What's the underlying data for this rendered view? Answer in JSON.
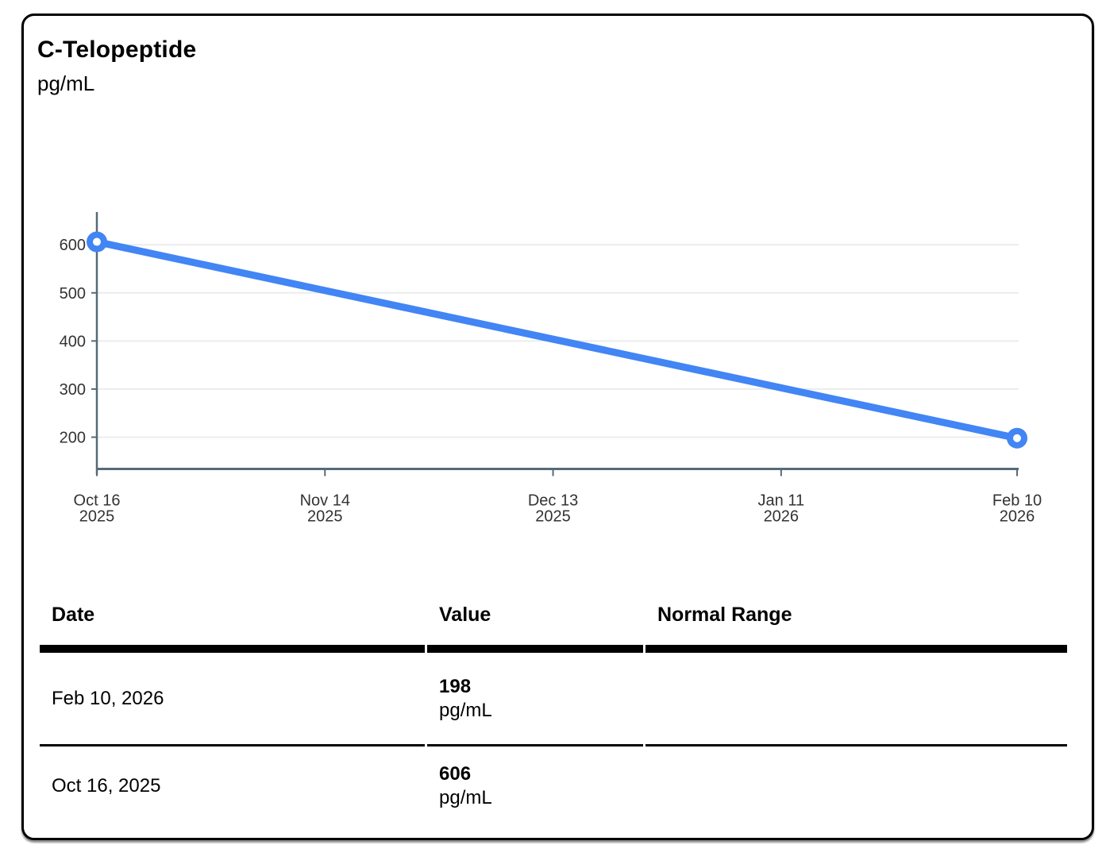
{
  "card": {
    "title": "C-Telopeptide",
    "unit": "pg/mL"
  },
  "chart_data": {
    "type": "line",
    "title": "C-Telopeptide",
    "ylabel": "pg/mL",
    "xlabel": "",
    "grid": true,
    "legend": "none",
    "y_ticks": [
      200,
      300,
      400,
      500,
      600
    ],
    "ylim": [
      134,
      668
    ],
    "x_ticks": [
      {
        "labels": [
          "Oct 16",
          "2025"
        ],
        "day": 0
      },
      {
        "labels": [
          "Nov 14",
          "2025"
        ],
        "day": 29
      },
      {
        "labels": [
          "Dec 13",
          "2025"
        ],
        "day": 58
      },
      {
        "labels": [
          "Jan 11",
          "2026"
        ],
        "day": 87
      },
      {
        "labels": [
          "Feb 10",
          "2026"
        ],
        "day": 117
      }
    ],
    "series": [
      {
        "name": "C-Telopeptide",
        "points": [
          {
            "x": "Oct 16, 2025",
            "day": 0,
            "value": 606
          },
          {
            "x": "Feb 10, 2026",
            "day": 117,
            "value": 198
          }
        ]
      }
    ],
    "colors": {
      "line": "#4285f4",
      "point_fill": "#ffffff",
      "axis": "#566a78",
      "grid": "#ececec",
      "tick_text": "#333333"
    }
  },
  "table": {
    "headers": [
      "Date",
      "Value",
      "Normal Range"
    ],
    "rows": [
      {
        "date": "Feb 10, 2026",
        "value": "198",
        "unit": "pg/mL",
        "normal_range": ""
      },
      {
        "date": "Oct 16, 2025",
        "value": "606",
        "unit": "pg/mL",
        "normal_range": ""
      }
    ]
  }
}
